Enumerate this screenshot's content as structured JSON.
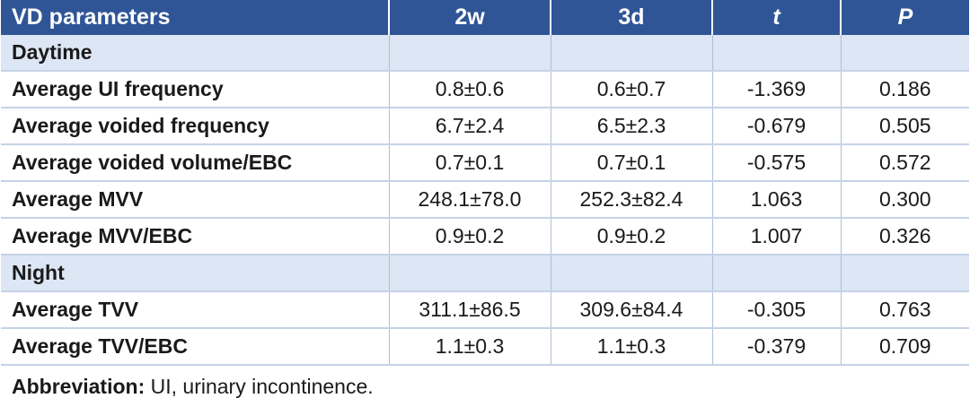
{
  "header": {
    "col0": "VD parameters",
    "col1": "2w",
    "col2": "3d",
    "col3": "t",
    "col4": "P"
  },
  "sections": [
    {
      "title": "Daytime",
      "rows": [
        {
          "label": "Average UI frequency",
          "w2": "0.8±0.6",
          "d3": "0.6±0.7",
          "t": "-1.369",
          "p": "0.186"
        },
        {
          "label": "Average voided frequency",
          "w2": "6.7±2.4",
          "d3": "6.5±2.3",
          "t": "-0.679",
          "p": "0.505"
        },
        {
          "label": "Average voided volume/EBC",
          "w2": "0.7±0.1",
          "d3": "0.7±0.1",
          "t": "-0.575",
          "p": "0.572"
        },
        {
          "label": "Average MVV",
          "w2": "248.1±78.0",
          "d3": "252.3±82.4",
          "t": "1.063",
          "p": "0.300"
        },
        {
          "label": "Average MVV/EBC",
          "w2": "0.9±0.2",
          "d3": "0.9±0.2",
          "t": "1.007",
          "p": "0.326"
        }
      ]
    },
    {
      "title": "Night",
      "rows": [
        {
          "label": "Average TVV",
          "w2": "311.1±86.5",
          "d3": "309.6±84.4",
          "t": "-0.305",
          "p": "0.763"
        },
        {
          "label": "Average TVV/EBC",
          "w2": "1.1±0.3",
          "d3": "1.1±0.3",
          "t": "-0.379",
          "p": "0.709"
        }
      ]
    }
  ],
  "footnote": {
    "label": "Abbreviation:",
    "text": " UI, urinary incontinence."
  },
  "colors": {
    "header_bg": "#2f5597",
    "section_bg": "#dce6f4"
  }
}
